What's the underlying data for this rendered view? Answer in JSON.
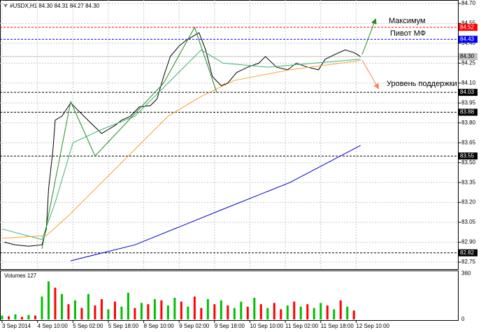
{
  "chart_data": {
    "type": "line",
    "title": "#USDX,H1  84.30 84.31 84.27 84.30",
    "xlim": [
      0,
      206
    ],
    "xticks": [
      {
        "value": 0,
        "label": "3 Sep 2014"
      },
      {
        "value": 16,
        "label": "4 Sep 10:00"
      },
      {
        "value": 32,
        "label": "5 Sep 02:00"
      },
      {
        "value": 48,
        "label": "5 Sep 18:00"
      },
      {
        "value": 64,
        "label": "8 Sep 10:00"
      },
      {
        "value": 80,
        "label": "9 Sep 02:00"
      },
      {
        "value": 96,
        "label": "9 Sep 18:00"
      },
      {
        "value": 112,
        "label": "10 Sep 10:00"
      },
      {
        "value": 128,
        "label": "11 Sep 02:00"
      },
      {
        "value": 144,
        "label": "11 Sep 18:00"
      },
      {
        "value": 160,
        "label": "12 Sep 10:00"
      }
    ],
    "ylim": [
      82.75,
      84.7
    ],
    "yticks": [
      {
        "value": 84.7,
        "label": "84.70"
      },
      84.55,
      {
        "value": 84.4,
        "label": "84.40"
      },
      84.25,
      {
        "value": 84.1,
        "label": "84.10"
      },
      83.95,
      {
        "value": 83.8,
        "label": "83.80"
      },
      83.65,
      {
        "value": 83.5,
        "label": "83.50"
      },
      83.35,
      {
        "value": 83.2,
        "label": "83.20"
      },
      83.05,
      {
        "value": 82.9,
        "label": "82.90"
      },
      82.75
    ],
    "grid": true,
    "series": [
      {
        "color": "#000000",
        "x": [
          1,
          6,
          12,
          18,
          20,
          21,
          23,
          24,
          27,
          31,
          34,
          37,
          40,
          45,
          48,
          51,
          54,
          58,
          62,
          67,
          70,
          73,
          76,
          80,
          83,
          86,
          89,
          92,
          95,
          99,
          102,
          106,
          111,
          116,
          119,
          124,
          129,
          133,
          138,
          143,
          146,
          151,
          155,
          159,
          162
        ],
        "values": [
          82.9,
          82.88,
          82.87,
          82.88,
          83.0,
          83.3,
          83.6,
          83.82,
          83.85,
          83.95,
          83.9,
          83.85,
          83.8,
          83.72,
          83.75,
          83.78,
          83.82,
          83.85,
          83.92,
          83.93,
          83.98,
          84.15,
          84.3,
          84.38,
          84.42,
          84.45,
          84.48,
          84.35,
          84.15,
          84.08,
          84.1,
          84.18,
          84.22,
          84.25,
          84.3,
          84.22,
          84.2,
          84.25,
          84.22,
          84.2,
          84.28,
          84.32,
          84.35,
          84.33,
          84.3
        ]
      },
      {
        "color": "#3cb371",
        "x": [
          0,
          18,
          24,
          32,
          45,
          60,
          75,
          90,
          100,
          120,
          162
        ],
        "values": [
          83.0,
          82.92,
          83.2,
          83.65,
          83.75,
          83.85,
          84.1,
          84.35,
          84.25,
          84.22,
          84.28
        ]
      },
      {
        "color": "#f4a430",
        "x": [
          0,
          20,
          30,
          45,
          60,
          75,
          90,
          105,
          130,
          162
        ],
        "values": [
          82.93,
          82.95,
          83.1,
          83.35,
          83.6,
          83.85,
          84.0,
          84.12,
          84.2,
          84.27
        ]
      },
      {
        "color": "#0000cd",
        "x": [
          31,
          60,
          100,
          130,
          162
        ],
        "values": [
          82.76,
          82.88,
          83.15,
          83.35,
          83.63
        ]
      },
      {
        "color": "#228b22",
        "x": [
          18,
          31,
          42,
          73,
          87,
          97
        ],
        "values": [
          82.85,
          83.96,
          83.55,
          84.1,
          84.52,
          84.03
        ]
      }
    ],
    "levels": [
      {
        "value": 84.52,
        "label": "84.52",
        "color": "#ff0000"
      },
      {
        "value": 84.43,
        "label": "84.43",
        "color": "#0000ff"
      },
      {
        "value": 84.3,
        "label": "84.30",
        "color": "#c0c0c0"
      },
      {
        "value": 84.03,
        "label": "84.03",
        "color": "#000000"
      },
      {
        "value": 83.88,
        "label": "83.88",
        "color": "#000000"
      },
      {
        "value": 83.55,
        "label": "83.55",
        "color": "#000000"
      },
      {
        "value": 82.82,
        "label": "82.82",
        "color": "#000000"
      }
    ],
    "annotations": [
      "Максимум",
      "Пивот МФ",
      "Уровень поддержки"
    ],
    "volume": {
      "title": "Volumes 127",
      "ylim": [
        0,
        380
      ],
      "yticks": [
        0,
        360
      ],
      "x": [
        0,
        3,
        6,
        9,
        12,
        15,
        18,
        21,
        24,
        27,
        30,
        33,
        36,
        39,
        42,
        45,
        48,
        51,
        54,
        57,
        60,
        63,
        66,
        69,
        72,
        75,
        78,
        81,
        84,
        87,
        90,
        93,
        96,
        99,
        102,
        105,
        108,
        111,
        114,
        117,
        120,
        123,
        126,
        129,
        132,
        135,
        138,
        141,
        144,
        147,
        150,
        153,
        156,
        159
      ],
      "values": [
        30,
        25,
        40,
        20,
        35,
        30,
        180,
        300,
        250,
        200,
        120,
        150,
        90,
        200,
        110,
        160,
        80,
        140,
        100,
        210,
        90,
        130,
        120,
        160,
        150,
        110,
        170,
        140,
        100,
        180,
        90,
        160,
        120,
        150,
        110,
        90,
        140,
        100,
        170,
        120,
        90,
        130,
        80,
        110,
        140,
        100,
        120,
        90,
        130,
        110,
        80,
        150,
        100,
        70
      ],
      "colors": [
        "#00c000",
        "#ff0000",
        "#00c000",
        "#ff0000",
        "#00c000",
        "#ff0000",
        "#00c000",
        "#00c000",
        "#ff0000",
        "#00c000",
        "#ff0000",
        "#00c000",
        "#ff0000",
        "#00c000",
        "#ff0000",
        "#ff0000",
        "#00c000",
        "#ff0000",
        "#00c000",
        "#00c000",
        "#ff0000",
        "#00c000",
        "#ff0000",
        "#00c000",
        "#ff0000",
        "#00c000",
        "#00c000",
        "#ff0000",
        "#00c000",
        "#ff0000",
        "#ff0000",
        "#00c000",
        "#ff0000",
        "#00c000",
        "#ff0000",
        "#00c000",
        "#00c000",
        "#ff0000",
        "#00c000",
        "#ff0000",
        "#00c000",
        "#ff0000",
        "#ff0000",
        "#00c000",
        "#ff0000",
        "#00c000",
        "#ff0000",
        "#00c000",
        "#00c000",
        "#ff0000",
        "#00c000",
        "#ff0000",
        "#00c000",
        "#ff0000"
      ]
    }
  }
}
